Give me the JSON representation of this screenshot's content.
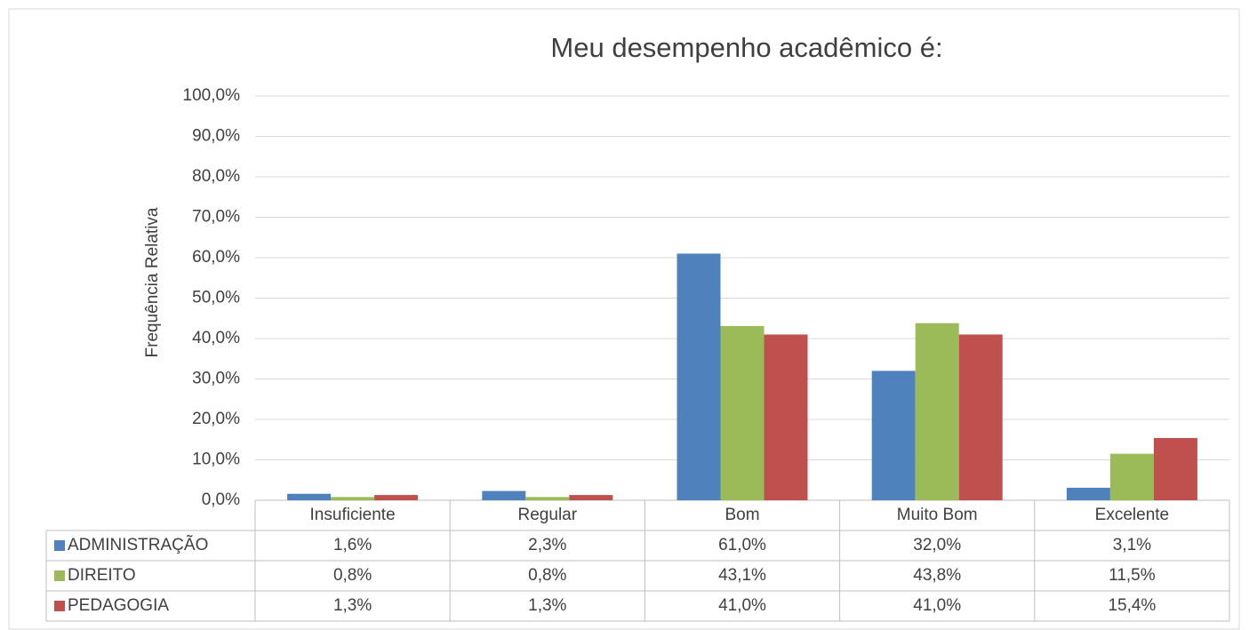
{
  "chart_data": {
    "type": "bar",
    "title": "Meu desempenho acadêmico é:",
    "y_label": "Frequência Relativa",
    "categories": [
      "Insuficiente",
      "Regular",
      "Bom",
      "Muito Bom",
      "Excelente"
    ],
    "series": [
      {
        "name": "ADMINISTRAÇÃO",
        "color": "#4f81bd",
        "values": [
          1.6,
          2.3,
          61.0,
          32.0,
          3.1
        ],
        "value_labels": [
          "1,6%",
          "2,3%",
          "61,0%",
          "32,0%",
          "3,1%"
        ]
      },
      {
        "name": "DIREITO",
        "color": "#9bbb59",
        "values": [
          0.8,
          0.8,
          43.1,
          43.8,
          11.5
        ],
        "value_labels": [
          "0,8%",
          "0,8%",
          "43,1%",
          "43,8%",
          "11,5%"
        ]
      },
      {
        "name": "PEDAGOGIA",
        "color": "#c0504d",
        "values": [
          1.3,
          1.3,
          41.0,
          41.0,
          15.4
        ],
        "value_labels": [
          "1,3%",
          "1,3%",
          "41,0%",
          "41,0%",
          "15,4%"
        ]
      }
    ],
    "ylim": [
      0,
      100
    ],
    "yticks": [
      {
        "value": 0,
        "label": "0,0%"
      },
      {
        "value": 10,
        "label": "10,0%"
      },
      {
        "value": 20,
        "label": "20,0%"
      },
      {
        "value": 30,
        "label": "30,0%"
      },
      {
        "value": 40,
        "label": "40,0%"
      },
      {
        "value": 50,
        "label": "50,0%"
      },
      {
        "value": 60,
        "label": "60,0%"
      },
      {
        "value": 70,
        "label": "70,0%"
      },
      {
        "value": 80,
        "label": "80,0%"
      },
      {
        "value": 90,
        "label": "90,0%"
      },
      {
        "value": 100,
        "label": "100,0%"
      }
    ],
    "grid": true
  }
}
